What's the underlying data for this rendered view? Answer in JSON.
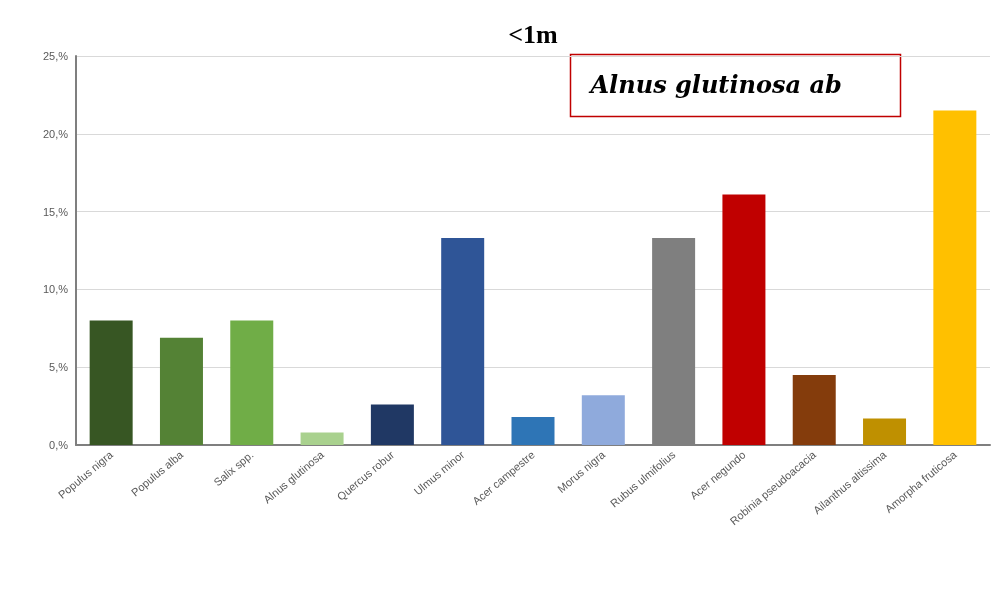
{
  "chart_data": {
    "type": "bar",
    "title": "<1m",
    "categories": [
      "Populus nigra",
      "Populus alba",
      "Salix spp.",
      "Alnus glutinosa",
      "Quercus robur",
      "Ulmus minor",
      "Acer campestre",
      "Morus nigra",
      "Rubus ulmifolius",
      "Acer negundo",
      "Robinia pseudoacacia",
      "Ailanthus altissima",
      "Amorpha fruticosa"
    ],
    "values": [
      8.0,
      6.9,
      8.0,
      0.8,
      2.6,
      13.3,
      1.8,
      3.2,
      13.3,
      16.1,
      4.5,
      1.7,
      21.5
    ],
    "colors": [
      "#375623",
      "#548235",
      "#70ad47",
      "#a9d18e",
      "#203864",
      "#2f5597",
      "#2e75b6",
      "#8faadc",
      "#7f7f7f",
      "#c00000",
      "#843c0c",
      "#bf9000",
      "#ffc000"
    ],
    "ylim": [
      0,
      25
    ],
    "yticks": [
      {
        "value": 0,
        "label": "0,%"
      },
      {
        "value": 5,
        "label": "5,%"
      },
      {
        "value": 10,
        "label": "10,%"
      },
      {
        "value": 15,
        "label": "15,%"
      },
      {
        "value": 20,
        "label": "20,%"
      },
      {
        "value": 25,
        "label": "25,%"
      }
    ],
    "grid": "y",
    "annotations": [
      "Alnus glutinosa ab"
    ]
  }
}
